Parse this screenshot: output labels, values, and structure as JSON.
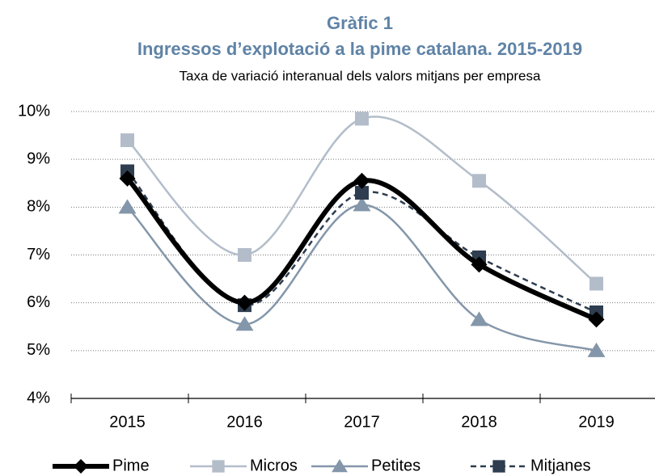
{
  "chart_data": {
    "type": "line",
    "title": "Gràfic 1",
    "subtitle": "Ingressos d’explotació a la pime catalana. 2015-2019",
    "note": "Taxa de variació interanual dels valors mitjans per empresa",
    "categories": [
      "2015",
      "2016",
      "2017",
      "2018",
      "2019"
    ],
    "series": [
      {
        "name": "Pime",
        "color": "#000000",
        "marker": "diamond",
        "dash": false,
        "values": [
          8.6,
          6.0,
          8.55,
          6.8,
          5.65
        ]
      },
      {
        "name": "Micros",
        "color": "#b3bdca",
        "marker": "square",
        "dash": false,
        "values": [
          9.4,
          7.0,
          9.85,
          8.55,
          6.4
        ]
      },
      {
        "name": "Petites",
        "color": "#8496aa",
        "marker": "triangle",
        "dash": false,
        "values": [
          8.0,
          5.55,
          8.05,
          5.65,
          5.0
        ]
      },
      {
        "name": "Mitjanes",
        "color": "#2e3d4f",
        "marker": "square",
        "dash": true,
        "values": [
          8.75,
          5.95,
          8.3,
          6.95,
          5.8
        ]
      }
    ],
    "ylim": [
      4,
      10
    ],
    "yticks": [
      {
        "value": 4,
        "label": "4%"
      },
      {
        "value": 5,
        "label": "5%"
      },
      {
        "value": 6,
        "label": "6%"
      },
      {
        "value": 7,
        "label": "7%"
      },
      {
        "value": 8,
        "label": "8%"
      },
      {
        "value": 9,
        "label": "9%"
      },
      {
        "value": 10,
        "label": "10%"
      }
    ],
    "grid": true,
    "legend": "bottom"
  }
}
